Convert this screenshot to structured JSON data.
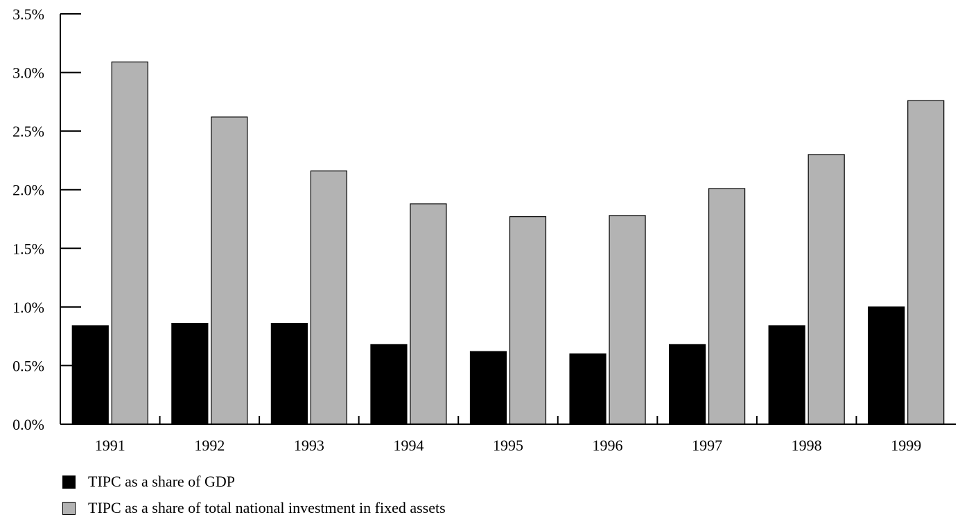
{
  "chart_data": {
    "type": "bar",
    "categories": [
      "1991",
      "1992",
      "1993",
      "1994",
      "1995",
      "1996",
      "1997",
      "1998",
      "1999"
    ],
    "series": [
      {
        "name": "TIPC as a share of GDP",
        "color": "#000000",
        "values": [
          0.84,
          0.86,
          0.86,
          0.68,
          0.62,
          0.6,
          0.68,
          0.84,
          1.0
        ]
      },
      {
        "name": "TIPC as a share of total national investment in fixed assets",
        "color": "#b3b3b3",
        "values": [
          3.09,
          2.62,
          2.16,
          1.88,
          1.77,
          1.78,
          2.01,
          2.3,
          2.76
        ]
      }
    ],
    "ylim": [
      0,
      3.5
    ],
    "yticks": [
      "0.0%",
      "0.5%",
      "1.0%",
      "1.5%",
      "2.0%",
      "2.5%",
      "3.0%",
      "3.5%"
    ],
    "grid": false,
    "legend_position": "bottom-left"
  }
}
